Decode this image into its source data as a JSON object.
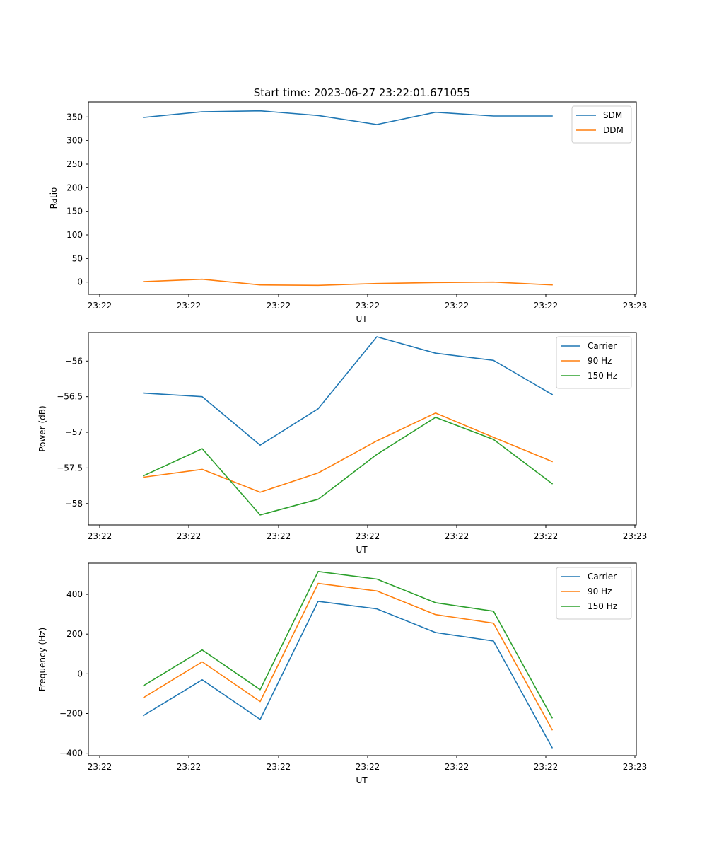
{
  "title": "Start time: 2023-06-27 23:22:01.671055",
  "chart_data": [
    {
      "type": "line",
      "xlabel": "UT",
      "ylabel": "Ratio",
      "xticks": [
        "23:22",
        "23:22",
        "23:22",
        "23:22",
        "23:22",
        "23:22",
        "23:23"
      ],
      "yticks": [
        0,
        50,
        100,
        150,
        200,
        250,
        300,
        350
      ],
      "ylim": [
        -26,
        382
      ],
      "legend": "top-right",
      "grid": false,
      "series": [
        {
          "name": "SDM",
          "color": "#1f77b4",
          "values": [
            349,
            361,
            363,
            353,
            334,
            360,
            352,
            352
          ]
        },
        {
          "name": "DDM",
          "color": "#ff7f0e",
          "values": [
            1,
            6,
            -6,
            -7,
            -3,
            -1,
            0,
            -6
          ]
        }
      ]
    },
    {
      "type": "line",
      "xlabel": "UT",
      "ylabel": "Power (dB)",
      "xticks": [
        "23:22",
        "23:22",
        "23:22",
        "23:22",
        "23:22",
        "23:22",
        "23:23"
      ],
      "yticks": [
        -56.0,
        -56.5,
        -57.0,
        -57.5,
        -58.0
      ],
      "ylim": [
        -58.3,
        -55.6
      ],
      "legend": "top-right",
      "grid": false,
      "series": [
        {
          "name": "Carrier",
          "color": "#1f77b4",
          "values": [
            -56.45,
            -56.5,
            -57.18,
            -56.67,
            -55.66,
            -55.89,
            -55.99,
            -56.47
          ]
        },
        {
          "name": "90 Hz",
          "color": "#ff7f0e",
          "values": [
            -57.63,
            -57.52,
            -57.84,
            -57.57,
            -57.12,
            -56.73,
            -57.07,
            -57.41
          ]
        },
        {
          "name": "150 Hz",
          "color": "#2ca02c",
          "values": [
            -57.61,
            -57.23,
            -58.16,
            -57.94,
            -57.31,
            -56.79,
            -57.1,
            -57.72
          ]
        }
      ]
    },
    {
      "type": "line",
      "xlabel": "UT",
      "ylabel": "Frequency (Hz)",
      "xticks": [
        "23:22",
        "23:22",
        "23:22",
        "23:22",
        "23:22",
        "23:22",
        "23:23"
      ],
      "yticks": [
        -400,
        -200,
        0,
        200,
        400
      ],
      "ylim": [
        -412,
        557
      ],
      "legend": "top-right",
      "grid": false,
      "series": [
        {
          "name": "Carrier",
          "color": "#1f77b4",
          "values": [
            -210,
            -30,
            -230,
            365,
            327,
            208,
            165,
            -372
          ]
        },
        {
          "name": "90 Hz",
          "color": "#ff7f0e",
          "values": [
            -120,
            60,
            -140,
            455,
            417,
            298,
            255,
            -282
          ]
        },
        {
          "name": "150 Hz",
          "color": "#2ca02c",
          "values": [
            -60,
            120,
            -80,
            515,
            477,
            358,
            315,
            -222
          ]
        }
      ]
    }
  ]
}
